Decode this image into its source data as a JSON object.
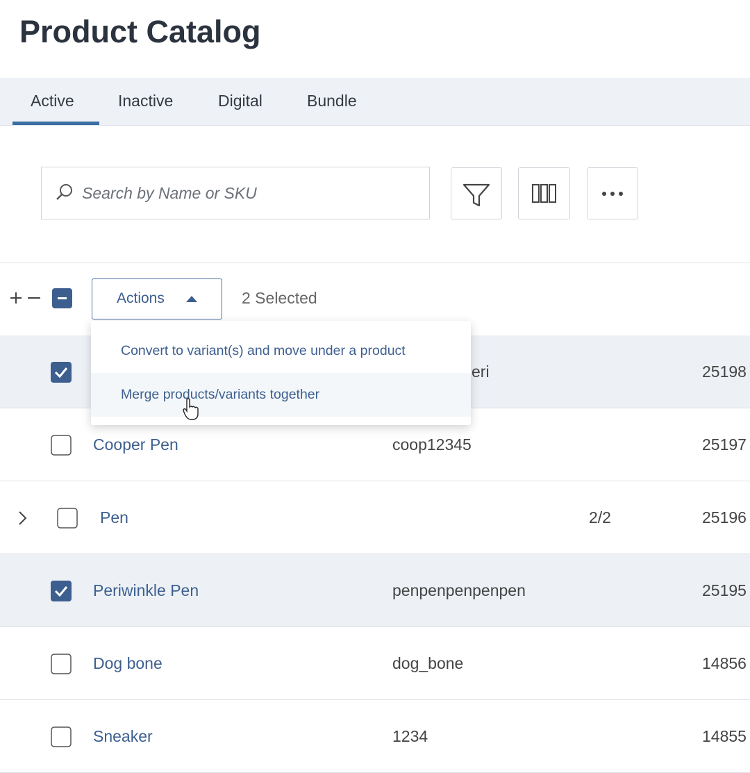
{
  "header": {
    "title": "Product Catalog"
  },
  "tabs": [
    "Active",
    "Inactive",
    "Digital",
    "Bundle"
  ],
  "search": {
    "placeholder": "Search by Name or SKU"
  },
  "toolbar": {
    "actions": "Actions",
    "selected": "2 Selected"
  },
  "actions_menu": [
    "Convert to variant(s) and move under a product",
    "Merge products/variants together"
  ],
  "table": {
    "rows": [
      {
        "checked": true,
        "sku": "eri",
        "id": "25198"
      },
      {
        "checked": false,
        "name": "Cooper Pen",
        "sku": "coop12345",
        "id": "25197"
      },
      {
        "checked": false,
        "expandable": true,
        "name": "Pen",
        "variants": "2/2",
        "id": "25196"
      },
      {
        "checked": true,
        "name": "Periwinkle Pen",
        "sku": "penpenpenpenpen",
        "id": "25195"
      },
      {
        "checked": false,
        "name": "Dog bone",
        "sku": "dog_bone",
        "id": "14856"
      },
      {
        "checked": false,
        "name": "Sneaker",
        "sku": "1234",
        "id": "14855"
      }
    ]
  }
}
